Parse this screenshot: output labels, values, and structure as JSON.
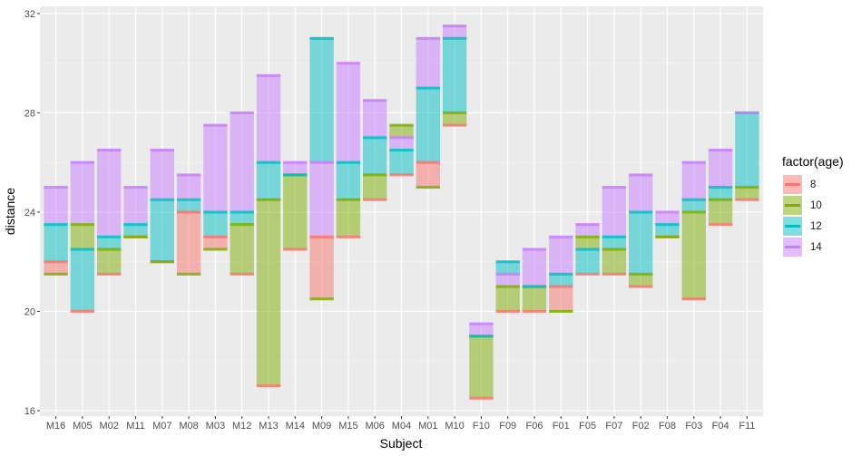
{
  "chart_data": {
    "type": "bar",
    "subtype": "floating stacked range bars (segments between consecutive measurements, colored by age)",
    "title": "",
    "xlabel": "Subject",
    "ylabel": "distance",
    "ylim": [
      15.78,
      32.29
    ],
    "yticks": [
      16,
      20,
      24,
      28,
      32
    ],
    "grid": true,
    "legend": {
      "title": "factor(age)",
      "position": "right",
      "entries": [
        "8",
        "10",
        "12",
        "14"
      ]
    },
    "colors": {
      "8": "#F8766D",
      "10": "#7CAE00",
      "12": "#00BFC4",
      "14": "#C77CFF"
    },
    "categories": [
      "M16",
      "M05",
      "M02",
      "M11",
      "M07",
      "M08",
      "M03",
      "M12",
      "M13",
      "M14",
      "M09",
      "M15",
      "M06",
      "M04",
      "M01",
      "M10",
      "F10",
      "F09",
      "F06",
      "F01",
      "F05",
      "F07",
      "F02",
      "F08",
      "F03",
      "F04",
      "F11"
    ],
    "series": [
      {
        "name": "8",
        "values": [
          22,
          20,
          21.5,
          23,
          22,
          24,
          23,
          21.5,
          17,
          22.5,
          23,
          23,
          24.5,
          25.5,
          26,
          27.5,
          16.5,
          20,
          20,
          21,
          21.5,
          21.5,
          21,
          23,
          20.5,
          23.5,
          24.5
        ]
      },
      {
        "name": "10",
        "values": [
          21.5,
          23.5,
          22.5,
          23,
          22,
          21.5,
          22.5,
          23.5,
          24.5,
          25.5,
          20.5,
          24.5,
          25.5,
          27.5,
          25,
          28,
          19,
          21,
          21,
          20,
          23,
          22.5,
          21.5,
          23,
          24,
          24.5,
          25
        ]
      },
      {
        "name": "12",
        "values": [
          23.5,
          22.5,
          23,
          23.5,
          24.5,
          24.5,
          24,
          24,
          26,
          25.5,
          31,
          26,
          27,
          26.5,
          29,
          31,
          19,
          22,
          21,
          21.5,
          22.5,
          23,
          24,
          23.5,
          24.5,
          25,
          28
        ]
      },
      {
        "name": "14",
        "values": [
          25,
          26,
          26.5,
          25,
          26.5,
          25.5,
          27.5,
          28,
          29.5,
          26,
          26,
          30,
          28.5,
          27,
          31,
          31.5,
          19.5,
          21.5,
          22.5,
          23,
          23.5,
          25,
          25.5,
          24,
          26,
          26.5,
          28
        ]
      }
    ]
  },
  "axes": {
    "x_title": "Subject",
    "y_title": "distance"
  },
  "legend": {
    "title": "factor(age)",
    "items": [
      {
        "label": "8",
        "color": "#F8766D"
      },
      {
        "label": "10",
        "color": "#7CAE00"
      },
      {
        "label": "12",
        "color": "#00BFC4"
      },
      {
        "label": "14",
        "color": "#C77CFF"
      }
    ]
  }
}
